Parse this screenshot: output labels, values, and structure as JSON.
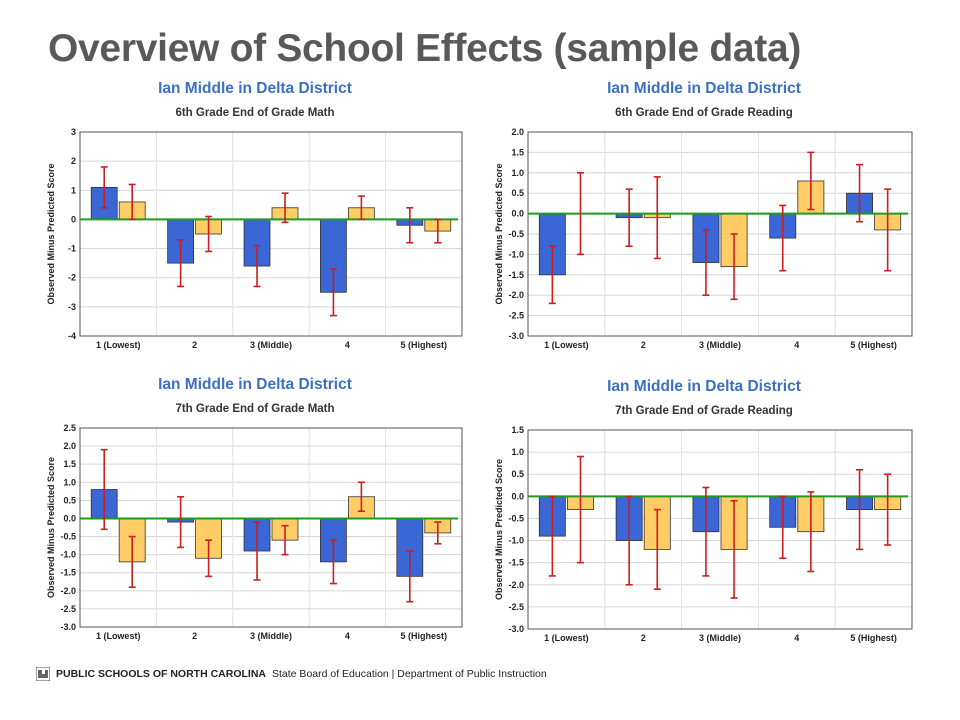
{
  "slide": {
    "title": "Overview of School Effects (sample data)"
  },
  "footer": {
    "org": "PUBLIC SCHOOLS OF NORTH CAROLINA",
    "dept": "State Board of Education | Department of Public Instruction",
    "logo_icon": "nc-dpi-logo-icon"
  },
  "colors": {
    "bar_blue": "#3b66d6",
    "bar_yellow": "#ffcc66",
    "error_bar": "#cc1f1f",
    "zero_line": "#1e9a1e",
    "title_blue": "#3a6fc4"
  },
  "chart_data": [
    {
      "type": "bar",
      "title": "Ian Middle in Delta District",
      "subtitle": "6th Grade End of Grade Math",
      "xlabel": "",
      "ylabel": "Observed Minus Predicted Score",
      "ylim": [
        -4,
        3
      ],
      "yticks": [
        3,
        2,
        1,
        0,
        -1,
        -2,
        -3,
        -4
      ],
      "ytick_labels": [
        "3",
        "2",
        "1",
        "0",
        "-1",
        "-2",
        "-3",
        "-4"
      ],
      "categories": [
        "1 (Lowest)",
        "2",
        "3 (Middle)",
        "4",
        "5 (Highest)"
      ],
      "grid": true,
      "series": [
        {
          "color": "blue",
          "values": [
            1.1,
            -1.5,
            -1.6,
            -2.5,
            -0.2
          ],
          "err_low": [
            0.4,
            -2.3,
            -2.3,
            -3.3,
            -0.8
          ],
          "err_high": [
            1.8,
            -0.7,
            -0.9,
            -1.7,
            0.4
          ]
        },
        {
          "color": "yellow",
          "values": [
            0.6,
            -0.5,
            0.4,
            0.4,
            -0.4
          ],
          "err_low": [
            0.0,
            -1.1,
            -0.1,
            0.0,
            -0.8
          ],
          "err_high": [
            1.2,
            0.1,
            0.9,
            0.8,
            0.0
          ]
        }
      ]
    },
    {
      "type": "bar",
      "title": "Ian Middle in Delta District",
      "subtitle": "6th Grade End of Grade Reading",
      "xlabel": "",
      "ylabel": "Observed Minus Predicted Score",
      "ylim": [
        -3,
        2
      ],
      "yticks": [
        2,
        1.5,
        1,
        0.5,
        0,
        -0.5,
        -1,
        -1.5,
        -2,
        -2.5,
        -3
      ],
      "ytick_labels": [
        "2.0",
        "1.5",
        "1.0",
        "0.5",
        "0.0",
        "-0.5",
        "-1.0",
        "-1.5",
        "-2.0",
        "-2.5",
        "-3.0"
      ],
      "categories": [
        "1 (Lowest)",
        "2",
        "3 (Middle)",
        "4",
        "5 (Highest)"
      ],
      "grid": true,
      "series": [
        {
          "color": "blue",
          "values": [
            -1.5,
            -0.1,
            -1.2,
            -0.6,
            0.5
          ],
          "err_low": [
            -2.2,
            -0.8,
            -2.0,
            -1.4,
            -0.2
          ],
          "err_high": [
            -0.8,
            0.6,
            -0.4,
            0.2,
            1.2
          ]
        },
        {
          "color": "yellow",
          "values": [
            0.0,
            -0.1,
            -1.3,
            0.8,
            -0.4
          ],
          "err_low": [
            -1.0,
            -1.1,
            -2.1,
            0.1,
            -1.4
          ],
          "err_high": [
            1.0,
            0.9,
            -0.5,
            1.5,
            0.6
          ]
        }
      ]
    },
    {
      "type": "bar",
      "title": "Ian Middle in Delta District",
      "subtitle": "7th Grade End of Grade Math",
      "xlabel": "",
      "ylabel": "Observed Minus Predicted Score",
      "ylim": [
        -3,
        2.5
      ],
      "yticks": [
        2.5,
        2,
        1.5,
        1,
        0.5,
        0,
        -0.5,
        -1,
        -1.5,
        -2,
        -2.5,
        -3
      ],
      "ytick_labels": [
        "2.5",
        "2.0",
        "1.5",
        "1.0",
        "0.5",
        "0.0",
        "-0.5",
        "-1.0",
        "-1.5",
        "-2.0",
        "-2.5",
        "-3.0"
      ],
      "categories": [
        "1 (Lowest)",
        "2",
        "3 (Middle)",
        "4",
        "5 (Highest)"
      ],
      "grid": true,
      "series": [
        {
          "color": "blue",
          "values": [
            0.8,
            -0.1,
            -0.9,
            -1.2,
            -1.6
          ],
          "err_low": [
            -0.3,
            -0.8,
            -1.7,
            -1.8,
            -2.3
          ],
          "err_high": [
            1.9,
            0.6,
            -0.1,
            -0.6,
            -0.9
          ]
        },
        {
          "color": "yellow",
          "values": [
            -1.2,
            -1.1,
            -0.6,
            0.6,
            -0.4
          ],
          "err_low": [
            -1.9,
            -1.6,
            -1.0,
            0.2,
            -0.7
          ],
          "err_high": [
            -0.5,
            -0.6,
            -0.2,
            1.0,
            -0.1
          ]
        }
      ]
    },
    {
      "type": "bar",
      "title": "Ian Middle in Delta District",
      "subtitle": "7th Grade End of Grade Reading",
      "xlabel": "",
      "ylabel": "Observed Minus Predicted Score",
      "ylim": [
        -3,
        1.5
      ],
      "yticks": [
        1.5,
        1,
        0.5,
        0,
        -0.5,
        -1,
        -1.5,
        -2,
        -2.5,
        -3
      ],
      "ytick_labels": [
        "1.5",
        "1.0",
        "0.5",
        "0.0",
        "-0.5",
        "-1.0",
        "-1.5",
        "-2.0",
        "-2.5",
        "-3.0"
      ],
      "categories": [
        "1 (Lowest)",
        "2",
        "3 (Middle)",
        "4",
        "5 (Highest)"
      ],
      "grid": true,
      "series": [
        {
          "color": "blue",
          "values": [
            -0.9,
            -1.0,
            -0.8,
            -0.7,
            -0.3
          ],
          "err_low": [
            -1.8,
            -2.0,
            -1.8,
            -1.4,
            -1.2
          ],
          "err_high": [
            0.0,
            0.0,
            0.2,
            0.0,
            0.6
          ]
        },
        {
          "color": "yellow",
          "values": [
            -0.3,
            -1.2,
            -1.2,
            -0.8,
            -0.3
          ],
          "err_low": [
            -1.5,
            -2.1,
            -2.3,
            -1.7,
            -1.1
          ],
          "err_high": [
            0.9,
            -0.3,
            -0.1,
            0.1,
            0.5
          ]
        }
      ]
    }
  ]
}
